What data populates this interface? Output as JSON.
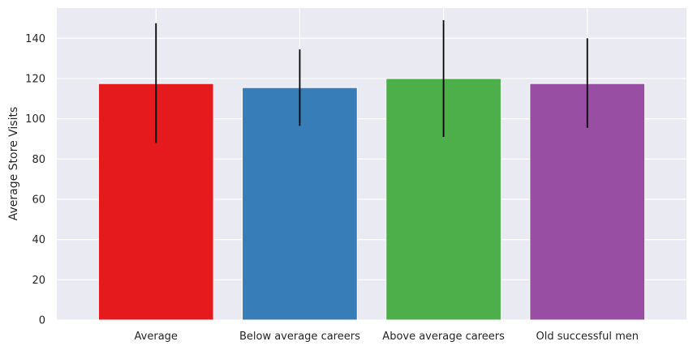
{
  "chart_data": {
    "type": "bar",
    "title": "",
    "xlabel": "",
    "ylabel": "Average Store Visits",
    "categories": [
      "Average",
      "Below average careers",
      "Above average careers",
      "Old successful men"
    ],
    "values": [
      117.5,
      115.5,
      120,
      117.5
    ],
    "error_low": [
      88,
      96.5,
      91,
      95.5
    ],
    "error_high": [
      147.5,
      134.5,
      149,
      140
    ],
    "colors": [
      "#e41a1c",
      "#377eb8",
      "#4daf4a",
      "#984ea3"
    ],
    "ylim": [
      0,
      155
    ],
    "yticks": [
      0,
      20,
      40,
      60,
      80,
      100,
      120,
      140
    ],
    "grid": true,
    "background": "#eaeaf2",
    "errorbar_color": "#000000"
  }
}
